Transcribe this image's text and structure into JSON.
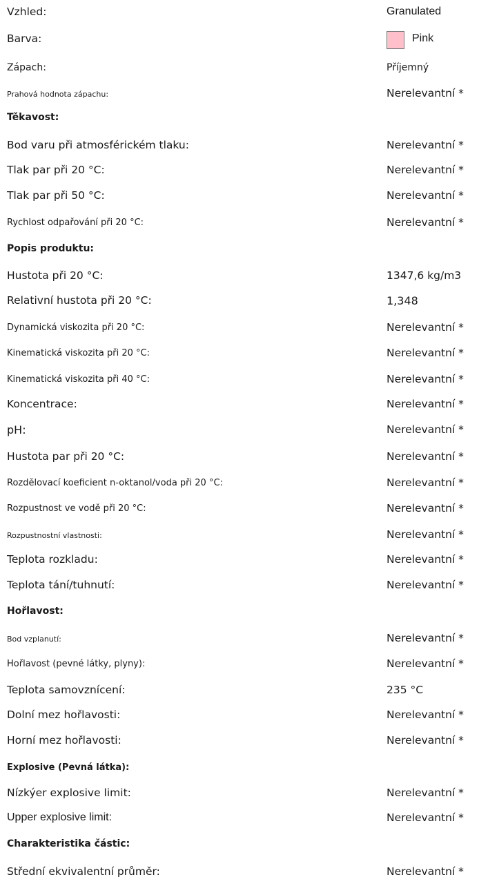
{
  "top": {
    "appearance_label": "Vzhled:",
    "appearance_value": "Granulated",
    "color_label": "Barva:",
    "color_value": "Pink",
    "color_swatch": "#ffc0cb",
    "odor_label": "Zápach:",
    "odor_value": "Příjemný",
    "odor_threshold_label": "Prahová hodnota zápachu:",
    "odor_threshold_value": "Nerelevantní *"
  },
  "volatility": {
    "heading": "Těkavost:",
    "boiling_label": "Bod varu při atmosférickém tlaku:",
    "boiling_value": "Nerelevantní *",
    "vp20_label": "Tlak par při 20 °C:",
    "vp20_value": "Nerelevantní *",
    "vp50_label": "Tlak par při 50 °C:",
    "vp50_value": "Nerelevantní *",
    "evap_label": "Rychlost odpařování při 20 °C:",
    "evap_value": "Nerelevantní *"
  },
  "product": {
    "heading": "Popis produktu:",
    "density_label": "Hustota při 20 °C:",
    "density_value": "1347,6 kg/m3",
    "rel_density_label": "Relativní hustota při 20 °C:",
    "rel_density_value": "1,348",
    "dyn_visc_label": "Dynamická viskozita při 20 °C:",
    "dyn_visc_value": "Nerelevantní *",
    "kin_visc20_label": "Kinematická viskozita při 20 °C:",
    "kin_visc20_value": "Nerelevantní *",
    "kin_visc40_label": "Kinematická viskozita při 40 °C:",
    "kin_visc40_value": "Nerelevantní *",
    "conc_label": "Koncentrace:",
    "conc_value": "Nerelevantní *",
    "ph_label": "pH:",
    "ph_value": "Nerelevantní *",
    "vapor_density_label": "Hustota par při 20 °C:",
    "vapor_density_value": "Nerelevantní *",
    "partition_label": "Rozdělovací koeficient n-oktanol/voda při 20 °C:",
    "partition_value": "Nerelevantní *",
    "solubility_label": "Rozpustnost ve vodě při 20 °C:",
    "solubility_value": "Nerelevantní *",
    "solubility_props_label": "Rozpustnostní vlastnosti:",
    "solubility_props_value": "Nerelevantní *",
    "decomp_label": "Teplota rozkladu:",
    "decomp_value": "Nerelevantní *",
    "melting_label": "Teplota tání/tuhnutí:",
    "melting_value": "Nerelevantní *"
  },
  "flammability": {
    "heading": "Hořlavost:",
    "flash_label": "Bod vzplanutí:",
    "flash_value": "Nerelevantní *",
    "flam_label": "Hořlavost (pevné látky, plyny):",
    "flam_value": "Nerelevantní *",
    "autoign_label": "Teplota samovznícení:",
    "autoign_value": "235 °C",
    "lower_label": "Dolní mez hořlavosti:",
    "lower_value": "Nerelevantní *",
    "upper_label": "Horní mez hořlavosti:",
    "upper_value": "Nerelevantní *"
  },
  "explosive": {
    "heading": "Explosive (Pevná látka):",
    "lower_label": "Nízkýer explosive limit:",
    "lower_value": "Nerelevantní *",
    "upper_label": "Upper explosive limit:",
    "upper_value": "Nerelevantní *"
  },
  "particles": {
    "heading": "Charakteristika částic:",
    "diameter_label": "Střední ekvivalentní průměr:",
    "diameter_value": "Nerelevantní *"
  }
}
